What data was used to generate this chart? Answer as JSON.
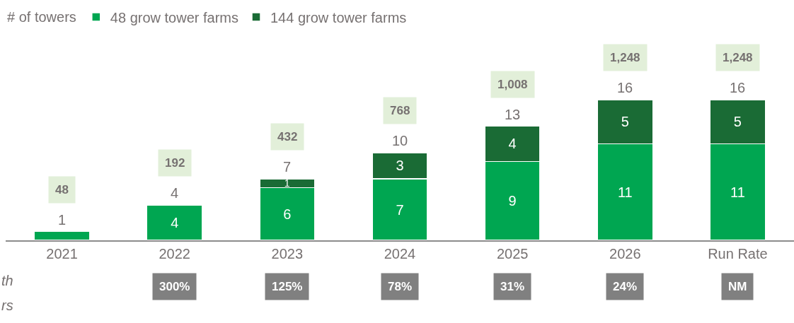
{
  "chart_data": {
    "type": "bar",
    "stacked": true,
    "categories": [
      "2021",
      "2022",
      "2023",
      "2024",
      "2025",
      "2026",
      "Run Rate"
    ],
    "tick_labels": "x",
    "legend": "top left",
    "legend_title": "# of towers",
    "series": [
      {
        "name": "48 grow tower farms",
        "color": "#00a651",
        "values": [
          1,
          4,
          6,
          7,
          9,
          11,
          11
        ],
        "value_labels": [
          null,
          "4",
          "6",
          "7",
          "9",
          "11",
          "11"
        ]
      },
      {
        "name": "144 grow tower farms",
        "color": "#1a6b35",
        "values": [
          null,
          null,
          1,
          3,
          4,
          5,
          5
        ],
        "value_labels": [
          null,
          null,
          "1",
          "3",
          "4",
          "5",
          "5"
        ]
      }
    ],
    "totals": [
      "1",
      "4",
      "7",
      "10",
      "13",
      "16",
      "16"
    ],
    "annotations": [
      "48",
      "192",
      "432",
      "768",
      "1,008",
      "1,248",
      "1,248",
      "300%",
      "125%",
      "78%",
      "31%",
      "24%",
      "NM",
      "th",
      "rs"
    ]
  }
}
